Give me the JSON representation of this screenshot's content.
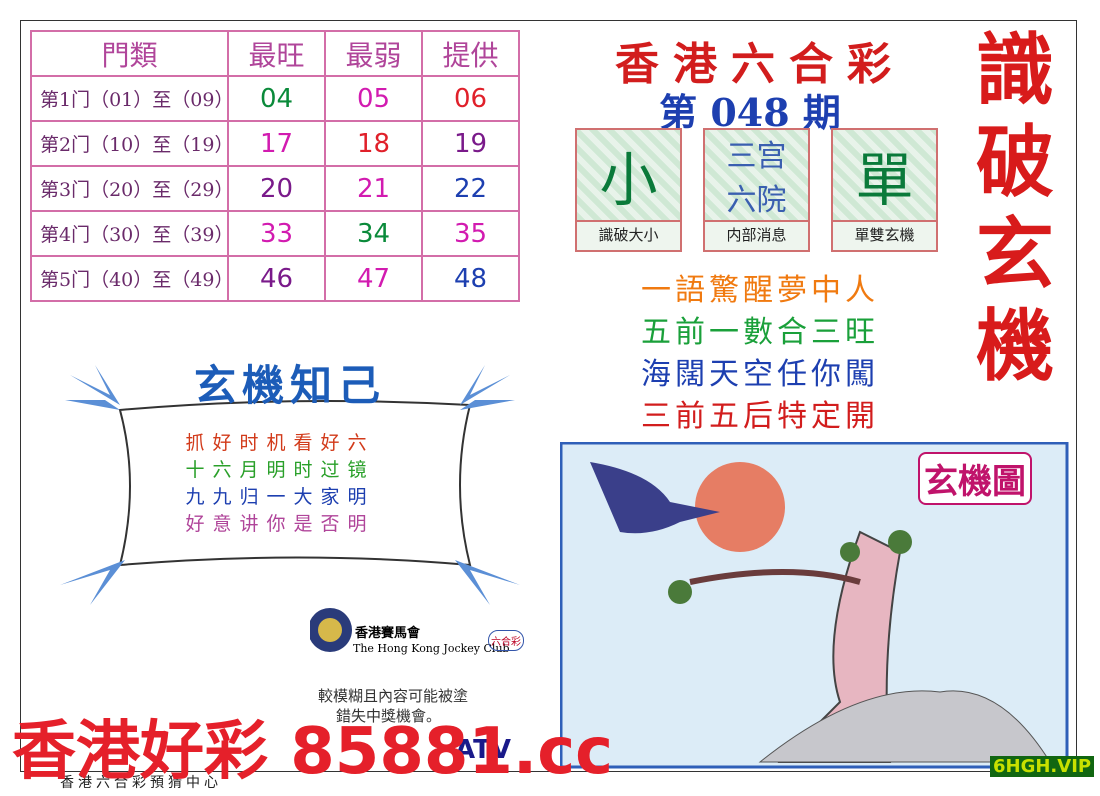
{
  "table": {
    "header": [
      "門類",
      "最旺",
      "最弱",
      "提供"
    ],
    "rows": [
      [
        "第1门（01）至（09）",
        "04",
        "05",
        "06"
      ],
      [
        "第2门（10）至（19）",
        "17",
        "18",
        "19"
      ],
      [
        "第3门（20）至（29）",
        "20",
        "21",
        "22"
      ],
      [
        "第4门（30）至（39）",
        "33",
        "34",
        "35"
      ],
      [
        "第5门（40）至（49）",
        "46",
        "47",
        "48"
      ]
    ]
  },
  "header": {
    "title": "香港六合彩",
    "issue": "第 048 期",
    "side_title": "識破玄機"
  },
  "boxes": [
    {
      "big": "小",
      "caption": "識破大小"
    },
    {
      "big": "三宫六院",
      "caption": "内部消息"
    },
    {
      "big": "單",
      "caption": "單雙玄機"
    }
  ],
  "phrases": [
    "一語驚醒夢中人",
    "五前一數合三旺",
    "海闊天空任你闖",
    "三前五后特定開"
  ],
  "poem": {
    "title": "玄機知己",
    "lines": [
      "抓好时机看好六",
      "十六月明时过镜",
      "九九归一大家明",
      "好意讲你是否明"
    ]
  },
  "logo": {
    "name": "香港賽馬會",
    "english": "The Hong Kong Jockey Club",
    "badge": "六合彩",
    "tv": "ATV"
  },
  "notice": [
    "較模糊且內容可能被塗",
    "錯失中獎機會。"
  ],
  "picture_title": "玄機圖",
  "footer": "香港六合彩預猜中心",
  "watermark": "香港好彩 85881.cc",
  "corner_mark": "6HGH.VIP"
}
